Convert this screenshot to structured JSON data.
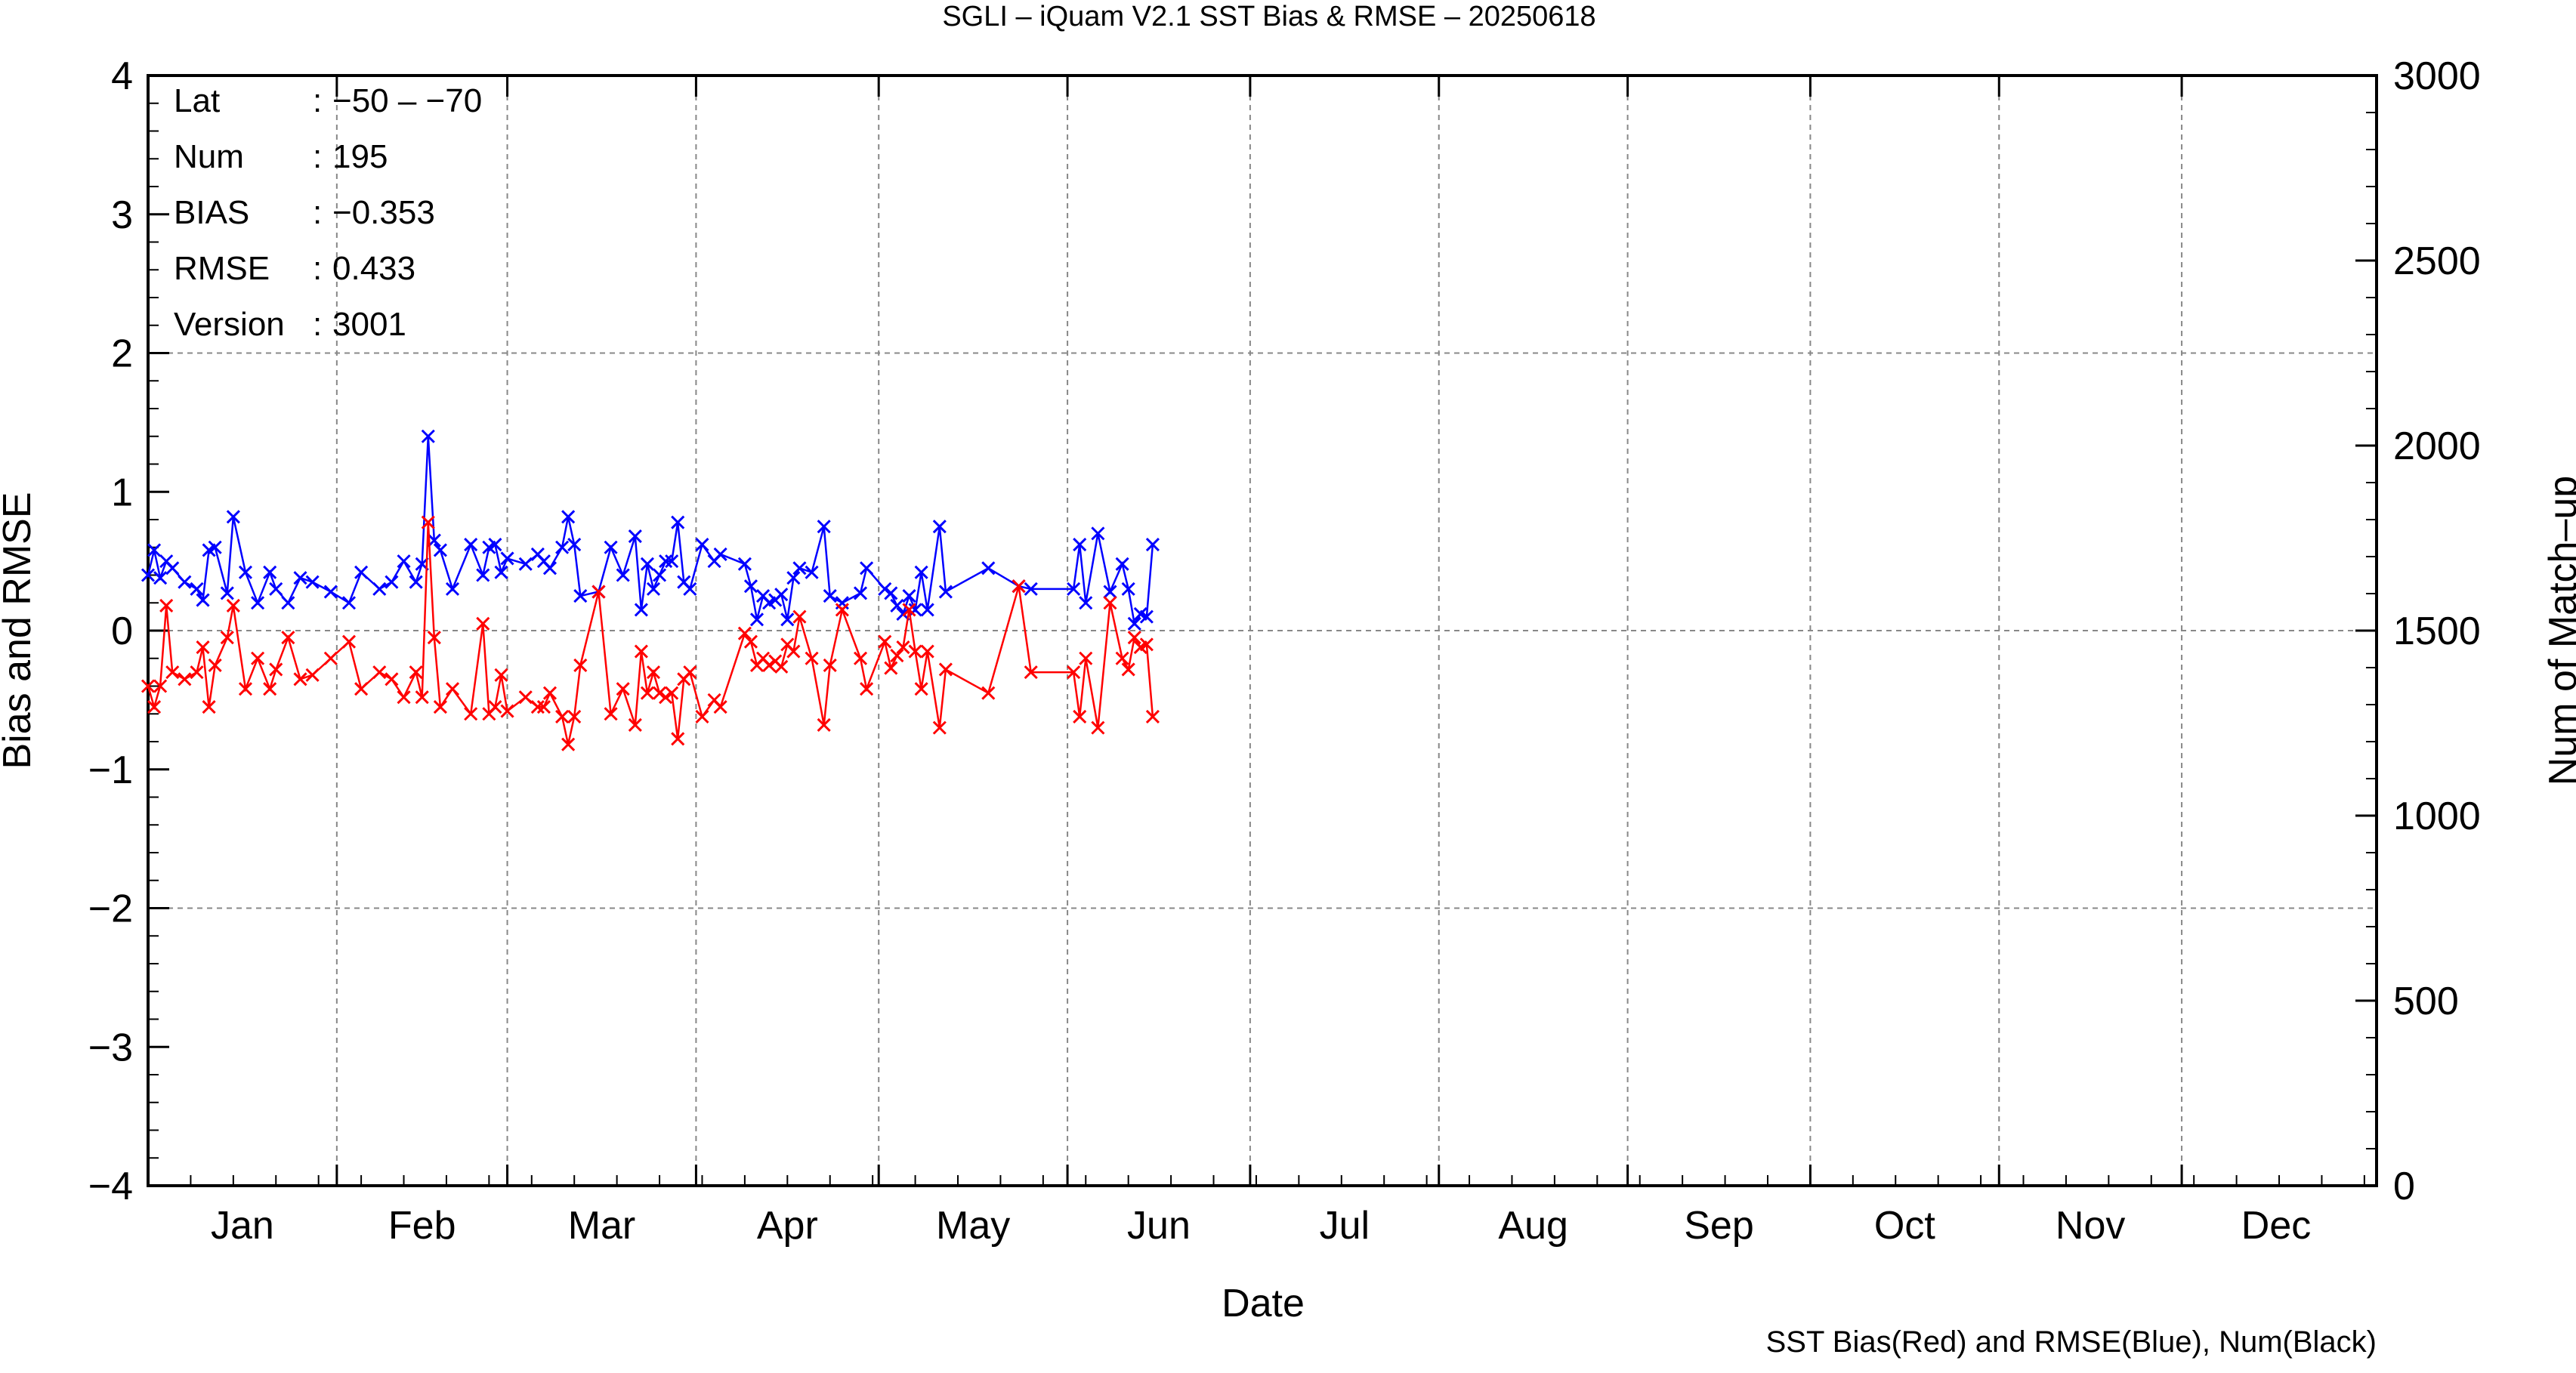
{
  "chart_data": {
    "type": "line",
    "title": "SGLI – iQuam V2.1 SST Bias & RMSE  – 20250618",
    "xlabel": "Date",
    "ylabel": "Bias and RMSE",
    "y2label": "Num of Match–up",
    "footnote": "SST Bias(Red) and RMSE(Blue), Num(Black)",
    "x_unit": "day of year 2025",
    "xlim": [
      1,
      366
    ],
    "ylim": [
      -4,
      4
    ],
    "y2lim": [
      0,
      3000
    ],
    "yticks": [
      "−4",
      "−3",
      "−2",
      "−1",
      "0",
      "1",
      "2",
      "3",
      "4"
    ],
    "y2ticks": [
      "0",
      "500",
      "1000",
      "1500",
      "2000",
      "2500",
      "3000"
    ],
    "month_labels": [
      "Jan",
      "Feb",
      "Mar",
      "Apr",
      "May",
      "Jun",
      "Jul",
      "Aug",
      "Sep",
      "Oct",
      "Nov",
      "Dec"
    ],
    "grid": true,
    "grid_style": "dashed",
    "colors": {
      "bias": "#ff0000",
      "rmse": "#0000ff",
      "num": "#000000"
    },
    "info_box": [
      {
        "key": "Lat",
        "sep": ":",
        "value": "−50 – −70"
      },
      {
        "key": "Num",
        "sep": ":",
        "value": "195"
      },
      {
        "key": "BIAS",
        "sep": ":",
        "value": "−0.353"
      },
      {
        "key": "RMSE",
        "sep": ":",
        "value": "0.433"
      },
      {
        "key": "Version",
        "sep": ":",
        "value": "3001"
      }
    ],
    "series": [
      {
        "name": "RMSE",
        "color": "#0000ff",
        "points": [
          [
            1,
            0.4
          ],
          [
            2,
            0.58
          ],
          [
            3,
            0.38
          ],
          [
            4,
            0.5
          ],
          [
            5,
            0.45
          ],
          [
            7,
            0.35
          ],
          [
            9,
            0.3
          ],
          [
            10,
            0.22
          ],
          [
            11,
            0.58
          ],
          [
            12,
            0.6
          ],
          [
            14,
            0.27
          ],
          [
            15,
            0.82
          ],
          [
            17,
            0.42
          ],
          [
            19,
            0.2
          ],
          [
            21,
            0.42
          ],
          [
            22,
            0.3
          ],
          [
            24,
            0.2
          ],
          [
            26,
            0.38
          ],
          [
            28,
            0.35
          ],
          [
            31,
            0.28
          ],
          [
            34,
            0.2
          ],
          [
            36,
            0.42
          ],
          [
            39,
            0.3
          ],
          [
            41,
            0.35
          ],
          [
            43,
            0.5
          ],
          [
            45,
            0.35
          ],
          [
            46,
            0.48
          ],
          [
            47,
            1.4
          ],
          [
            48,
            0.65
          ],
          [
            49,
            0.58
          ],
          [
            51,
            0.3
          ],
          [
            54,
            0.62
          ],
          [
            56,
            0.4
          ],
          [
            57,
            0.6
          ],
          [
            58,
            0.62
          ],
          [
            59,
            0.42
          ],
          [
            60,
            0.52
          ],
          [
            63,
            0.48
          ],
          [
            65,
            0.55
          ],
          [
            66,
            0.5
          ],
          [
            67,
            0.45
          ],
          [
            69,
            0.6
          ],
          [
            70,
            0.82
          ],
          [
            71,
            0.62
          ],
          [
            72,
            0.25
          ],
          [
            75,
            0.28
          ],
          [
            77,
            0.6
          ],
          [
            79,
            0.4
          ],
          [
            81,
            0.68
          ],
          [
            82,
            0.15
          ],
          [
            83,
            0.48
          ],
          [
            84,
            0.3
          ],
          [
            85,
            0.4
          ],
          [
            86,
            0.5
          ],
          [
            87,
            0.5
          ],
          [
            88,
            0.78
          ],
          [
            89,
            0.35
          ],
          [
            90,
            0.3
          ],
          [
            92,
            0.62
          ],
          [
            94,
            0.5
          ],
          [
            95,
            0.55
          ],
          [
            99,
            0.48
          ],
          [
            100,
            0.32
          ],
          [
            101,
            0.08
          ],
          [
            102,
            0.25
          ],
          [
            103,
            0.2
          ],
          [
            104,
            0.22
          ],
          [
            105,
            0.26
          ],
          [
            106,
            0.08
          ],
          [
            107,
            0.38
          ],
          [
            108,
            0.45
          ],
          [
            110,
            0.42
          ],
          [
            112,
            0.75
          ],
          [
            113,
            0.25
          ],
          [
            115,
            0.2
          ],
          [
            118,
            0.27
          ],
          [
            119,
            0.45
          ],
          [
            122,
            0.3
          ],
          [
            123,
            0.27
          ],
          [
            124,
            0.18
          ],
          [
            125,
            0.12
          ],
          [
            126,
            0.25
          ],
          [
            127,
            0.15
          ],
          [
            128,
            0.42
          ],
          [
            129,
            0.15
          ],
          [
            131,
            0.75
          ],
          [
            132,
            0.28
          ],
          [
            139,
            0.45
          ],
          [
            144,
            0.32
          ],
          [
            146,
            0.3
          ],
          [
            153,
            0.3
          ],
          [
            154,
            0.62
          ],
          [
            155,
            0.2
          ],
          [
            157,
            0.7
          ],
          [
            159,
            0.28
          ],
          [
            161,
            0.48
          ],
          [
            162,
            0.3
          ],
          [
            163,
            0.05
          ],
          [
            164,
            0.12
          ],
          [
            165,
            0.1
          ],
          [
            166,
            0.62
          ]
        ]
      },
      {
        "name": "Bias",
        "color": "#ff0000",
        "points": [
          [
            1,
            -0.4
          ],
          [
            2,
            -0.55
          ],
          [
            3,
            -0.4
          ],
          [
            4,
            0.18
          ],
          [
            5,
            -0.3
          ],
          [
            7,
            -0.35
          ],
          [
            9,
            -0.3
          ],
          [
            10,
            -0.12
          ],
          [
            11,
            -0.55
          ],
          [
            12,
            -0.25
          ],
          [
            14,
            -0.05
          ],
          [
            15,
            0.18
          ],
          [
            17,
            -0.42
          ],
          [
            19,
            -0.2
          ],
          [
            21,
            -0.42
          ],
          [
            22,
            -0.28
          ],
          [
            24,
            -0.05
          ],
          [
            26,
            -0.35
          ],
          [
            28,
            -0.32
          ],
          [
            31,
            -0.2
          ],
          [
            34,
            -0.08
          ],
          [
            36,
            -0.42
          ],
          [
            39,
            -0.3
          ],
          [
            41,
            -0.35
          ],
          [
            43,
            -0.48
          ],
          [
            45,
            -0.3
          ],
          [
            46,
            -0.48
          ],
          [
            47,
            0.78
          ],
          [
            48,
            -0.05
          ],
          [
            49,
            -0.55
          ],
          [
            51,
            -0.42
          ],
          [
            54,
            -0.6
          ],
          [
            56,
            0.05
          ],
          [
            57,
            -0.6
          ],
          [
            58,
            -0.55
          ],
          [
            59,
            -0.32
          ],
          [
            60,
            -0.58
          ],
          [
            63,
            -0.48
          ],
          [
            65,
            -0.55
          ],
          [
            66,
            -0.55
          ],
          [
            67,
            -0.45
          ],
          [
            69,
            -0.62
          ],
          [
            70,
            -0.82
          ],
          [
            71,
            -0.62
          ],
          [
            72,
            -0.25
          ],
          [
            75,
            0.28
          ],
          [
            77,
            -0.6
          ],
          [
            79,
            -0.42
          ],
          [
            81,
            -0.68
          ],
          [
            82,
            -0.15
          ],
          [
            83,
            -0.45
          ],
          [
            84,
            -0.3
          ],
          [
            85,
            -0.45
          ],
          [
            86,
            -0.48
          ],
          [
            87,
            -0.45
          ],
          [
            88,
            -0.78
          ],
          [
            89,
            -0.35
          ],
          [
            90,
            -0.3
          ],
          [
            92,
            -0.62
          ],
          [
            94,
            -0.5
          ],
          [
            95,
            -0.55
          ],
          [
            99,
            -0.02
          ],
          [
            100,
            -0.08
          ],
          [
            101,
            -0.25
          ],
          [
            102,
            -0.2
          ],
          [
            103,
            -0.25
          ],
          [
            104,
            -0.22
          ],
          [
            105,
            -0.26
          ],
          [
            106,
            -0.1
          ],
          [
            107,
            -0.15
          ],
          [
            108,
            0.1
          ],
          [
            110,
            -0.2
          ],
          [
            112,
            -0.68
          ],
          [
            113,
            -0.25
          ],
          [
            115,
            0.15
          ],
          [
            118,
            -0.2
          ],
          [
            119,
            -0.42
          ],
          [
            122,
            -0.08
          ],
          [
            123,
            -0.27
          ],
          [
            124,
            -0.18
          ],
          [
            125,
            -0.12
          ],
          [
            126,
            0.15
          ],
          [
            127,
            -0.15
          ],
          [
            128,
            -0.42
          ],
          [
            129,
            -0.15
          ],
          [
            131,
            -0.7
          ],
          [
            132,
            -0.28
          ],
          [
            139,
            -0.45
          ],
          [
            144,
            0.32
          ],
          [
            146,
            -0.3
          ],
          [
            153,
            -0.3
          ],
          [
            154,
            -0.62
          ],
          [
            155,
            -0.2
          ],
          [
            157,
            -0.7
          ],
          [
            159,
            0.2
          ],
          [
            161,
            -0.2
          ],
          [
            162,
            -0.28
          ],
          [
            163,
            -0.05
          ],
          [
            164,
            -0.12
          ],
          [
            165,
            -0.1
          ],
          [
            166,
            -0.62
          ]
        ]
      }
    ]
  }
}
